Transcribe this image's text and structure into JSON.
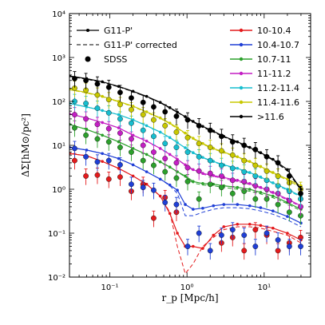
{
  "chart_data": {
    "type": "line",
    "xscale": "log",
    "yscale": "log",
    "xlim": [
      0.03,
      40
    ],
    "ylim": [
      0.01,
      10000
    ],
    "xlabel": "r_p [Mpc/h]",
    "ylabel": "ΔΣ[hM⊙/pc²]",
    "x_ticks": [
      0.1,
      1,
      10
    ],
    "x_tick_labels": [
      "10⁻¹",
      "10⁰",
      "10¹"
    ],
    "y_ticks": [
      0.01,
      0.1,
      1,
      10,
      100,
      1000,
      10000
    ],
    "y_tick_labels": [
      "10⁻²",
      "10⁻¹",
      "10⁰",
      "10¹",
      "10²",
      "10³",
      "10⁴"
    ],
    "grid": false,
    "legend_left": [
      {
        "label": "G11-P'",
        "style": "solid-line-dot"
      },
      {
        "label": "G11-P' corrected",
        "style": "dashed-line"
      },
      {
        "label": "SDSS",
        "style": "dot"
      }
    ],
    "legend_right_position": "top-right",
    "model_x": [
      0.03,
      0.05,
      0.08,
      0.13,
      0.2,
      0.3,
      0.45,
      0.6,
      0.75,
      0.95,
      1.2,
      1.6,
      2.2,
      3,
      4.5,
      6.5,
      9,
      13,
      20,
      30
    ],
    "obs_x": [
      0.035,
      0.049,
      0.069,
      0.097,
      0.136,
      0.19,
      0.27,
      0.37,
      0.52,
      0.73,
      1.02,
      1.43,
      2.0,
      2.8,
      3.9,
      5.5,
      7.7,
      10.8,
      15.1,
      21.2,
      29.7
    ],
    "series": [
      {
        "name": "10-10.4",
        "color": "#e41a1c",
        "model": [
          6.5,
          5.8,
          4.3,
          3.0,
          2.0,
          1.3,
          0.7,
          0.28,
          0.1,
          0.05,
          0.05,
          0.045,
          0.09,
          0.14,
          0.16,
          0.16,
          0.15,
          0.13,
          0.1,
          0.07
        ],
        "corrected": [
          6.5,
          5.8,
          4.3,
          3.0,
          2.0,
          1.3,
          0.7,
          0.3,
          0.05,
          0.012,
          0.02,
          0.05,
          0.08,
          0.12,
          0.14,
          0.14,
          0.13,
          0.11,
          0.09,
          0.06
        ],
        "obs": [
          4.5,
          2.0,
          2.1,
          1.7,
          1.9,
          0.9,
          1.3,
          0.22,
          0.65,
          0.3,
          null,
          null,
          null,
          0.06,
          0.08,
          0.04,
          0.12,
          0.09,
          0.04,
          0.06,
          0.08
        ]
      },
      {
        "name": "10.4-10.7",
        "color": "#1f3fd6",
        "model": [
          9,
          7.8,
          6.5,
          5.0,
          3.6,
          2.5,
          1.7,
          1.25,
          0.95,
          0.45,
          0.35,
          0.37,
          0.42,
          0.45,
          0.45,
          0.42,
          0.38,
          0.32,
          0.24,
          0.17
        ],
        "corrected": [
          9,
          7.8,
          6.5,
          5.0,
          3.6,
          2.5,
          1.7,
          1.2,
          0.8,
          0.25,
          0.25,
          0.3,
          0.35,
          0.38,
          0.38,
          0.36,
          0.32,
          0.27,
          0.2,
          0.14
        ],
        "obs": [
          8.5,
          5.5,
          4.2,
          4.5,
          3.6,
          1.3,
          1.1,
          0.95,
          0.5,
          0.45,
          0.05,
          0.1,
          0.04,
          0.09,
          0.12,
          0.09,
          0.05,
          0.1,
          0.07,
          0.05,
          0.05
        ]
      },
      {
        "name": "10.7-11",
        "color": "#2ca02c",
        "model": [
          30,
          23,
          17,
          12,
          8.5,
          6.2,
          4.2,
          3.2,
          2.5,
          2.0,
          1.5,
          1.35,
          1.3,
          1.2,
          1.1,
          1.0,
          0.85,
          0.7,
          0.5,
          0.35
        ],
        "corrected": [
          30,
          23,
          17,
          12,
          8.5,
          6.2,
          4.2,
          3.2,
          2.5,
          1.9,
          1.4,
          1.25,
          1.2,
          1.1,
          1.0,
          0.9,
          0.78,
          0.64,
          0.47,
          0.32
        ],
        "obs": [
          25,
          17,
          14,
          12,
          9,
          7,
          4.5,
          3.5,
          2.5,
          1.8,
          1.5,
          0.6,
          1.3,
          1.1,
          0.8,
          0.9,
          0.6,
          0.6,
          0.45,
          0.3,
          0.25
        ]
      },
      {
        "name": "11-11.2",
        "color": "#c41ec4",
        "model": [
          52,
          42,
          33,
          25,
          17,
          12.5,
          8.5,
          6.2,
          4.8,
          3.6,
          2.8,
          2.3,
          2.05,
          1.85,
          1.6,
          1.35,
          1.1,
          0.85,
          0.6,
          0.42
        ],
        "corrected": [
          52,
          42,
          33,
          25,
          17,
          12.5,
          8.5,
          6.2,
          4.8,
          3.5,
          2.7,
          2.2,
          1.95,
          1.75,
          1.5,
          1.28,
          1.05,
          0.8,
          0.57,
          0.4
        ],
        "obs": [
          50,
          40,
          30,
          24,
          19,
          14,
          10,
          7,
          5,
          4,
          3.1,
          2.6,
          2.3,
          2.0,
          1.6,
          1.5,
          1.2,
          1.0,
          0.8,
          0.55,
          0.4
        ]
      },
      {
        "name": "11.2-11.4",
        "color": "#17becf",
        "model": [
          90,
          75,
          62,
          50,
          38,
          28,
          20,
          15,
          11.5,
          8.8,
          6.8,
          5.3,
          4.3,
          3.6,
          3.0,
          2.4,
          1.9,
          1.4,
          1.0,
          0.7
        ],
        "corrected": [
          90,
          75,
          62,
          50,
          38,
          28,
          20,
          15,
          11.5,
          8.7,
          6.7,
          5.2,
          4.2,
          3.5,
          2.9,
          2.3,
          1.8,
          1.35,
          0.95,
          0.67
        ],
        "obs": [
          100,
          90,
          70,
          55,
          40,
          32,
          22,
          16,
          11,
          9,
          7,
          5.5,
          4.5,
          3.5,
          3.0,
          2.5,
          2.0,
          1.6,
          1.2,
          0.9,
          0.6
        ]
      },
      {
        "name": "11.4-11.6",
        "color": "#c8c800",
        "model": [
          190,
          160,
          130,
          100,
          78,
          58,
          42,
          32,
          25,
          19,
          14.5,
          11,
          8.5,
          7.0,
          5.5,
          4.3,
          3.3,
          2.4,
          1.7,
          1.2
        ],
        "corrected": [
          185,
          155,
          127,
          98,
          76,
          56,
          41,
          31,
          24,
          18.5,
          14,
          10.6,
          8.2,
          6.8,
          5.3,
          4.1,
          3.1,
          2.3,
          1.6,
          1.1
        ],
        "obs": [
          200,
          180,
          140,
          110,
          85,
          65,
          50,
          38,
          28,
          20,
          15,
          11,
          9,
          7.5,
          6,
          4.5,
          3.5,
          2.6,
          2.0,
          1.4,
          1.0
        ]
      },
      {
        "name": ">11.6",
        "color": "#000000",
        "model": [
          380,
          330,
          280,
          220,
          170,
          130,
          95,
          72,
          57,
          45,
          35,
          27,
          21,
          16,
          12,
          9,
          6.8,
          4.8,
          2.8,
          1.0
        ],
        "corrected": [
          370,
          320,
          270,
          215,
          165,
          127,
          93,
          70,
          56,
          44,
          34,
          26,
          20,
          15.5,
          11.5,
          8.6,
          6.5,
          4.6,
          2.6,
          0.95
        ],
        "obs": [
          330,
          300,
          250,
          210,
          160,
          120,
          95,
          75,
          58,
          46,
          38,
          28,
          22,
          16,
          12,
          10,
          8,
          5.5,
          4.0,
          2.0,
          0.8
        ]
      }
    ]
  }
}
